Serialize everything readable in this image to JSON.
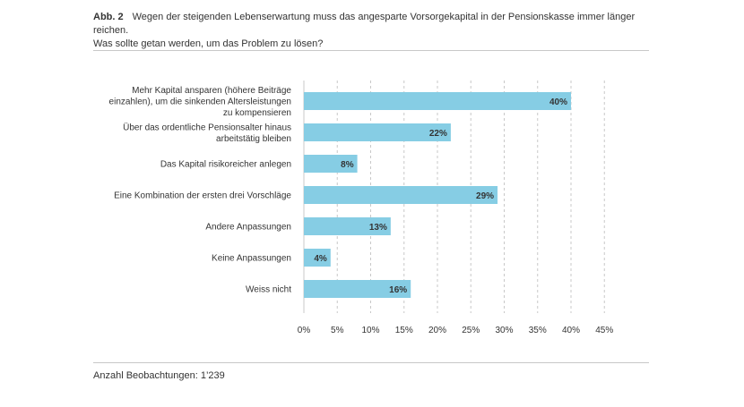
{
  "figure": {
    "label": "Abb. 2",
    "title_line1": "Wegen der steigenden Lebenserwartung muss das angesparte Vorsorgekapital in der Pensionskasse immer länger reichen.",
    "title_line2": "Was sollte getan werden, um das Problem zu lösen?"
  },
  "footer": {
    "note": "Anzahl Beobachtungen: 1’239"
  },
  "colors": {
    "bar": "#86cde4",
    "grid": "#c8c8c8",
    "text": "#333333"
  },
  "chart_data": {
    "type": "bar",
    "orientation": "horizontal",
    "categories": [
      [
        "Mehr Kapital ansparen (höhere Beiträge",
        "einzahlen), um die sinkenden Altersleistungen",
        "zu kompensieren"
      ],
      [
        "Über das ordentliche Pensionsalter hinaus",
        "arbeitstätig bleiben"
      ],
      [
        "Das Kapital risikoreicher anlegen"
      ],
      [
        "Eine Kombination der ersten drei Vorschläge"
      ],
      [
        "Andere Anpassungen"
      ],
      [
        "Keine Anpassungen"
      ],
      [
        "Weiss nicht"
      ]
    ],
    "values": [
      40,
      22,
      8,
      29,
      13,
      4,
      16
    ],
    "value_labels": [
      "40%",
      "22%",
      "8%",
      "29%",
      "13%",
      "4%",
      "16%"
    ],
    "x_ticks": [
      "0%",
      "5%",
      "10%",
      "15%",
      "20%",
      "25%",
      "30%",
      "35%",
      "40%",
      "45%"
    ],
    "xlim": [
      0,
      45
    ],
    "grid": "vertical dashed"
  }
}
